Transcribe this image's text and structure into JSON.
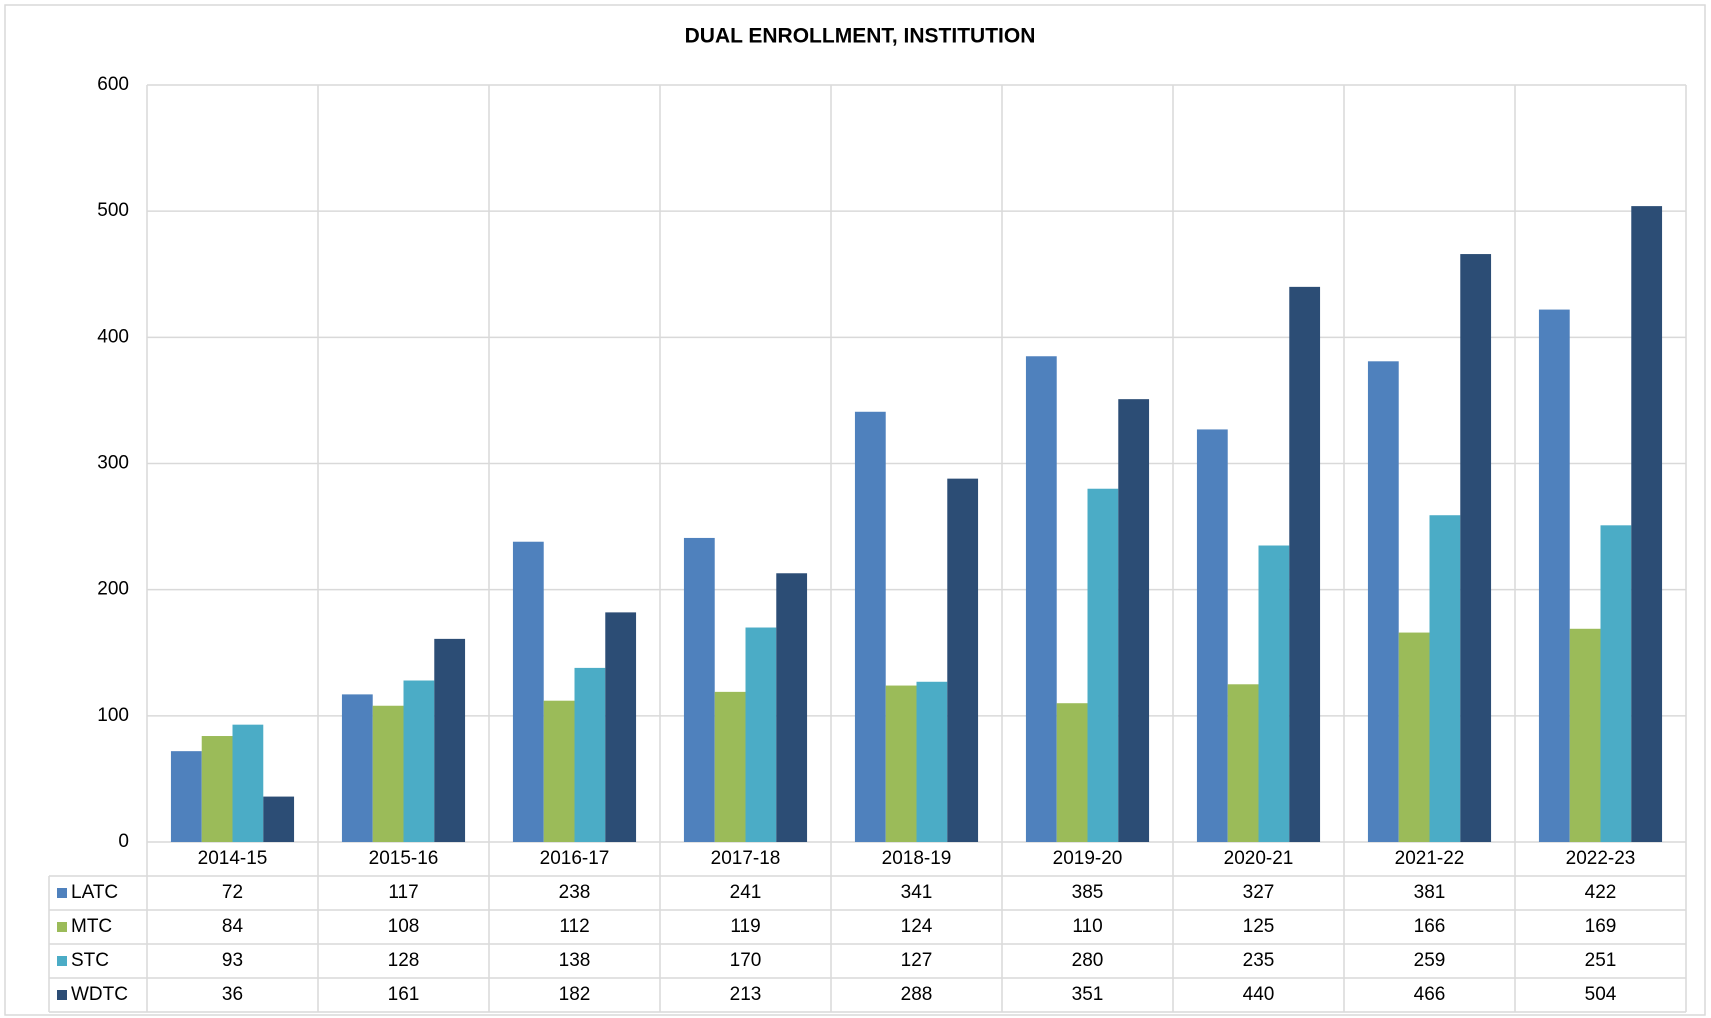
{
  "chart_data": {
    "type": "bar",
    "title": "DUAL ENROLLMENT, INSTITUTION",
    "categories": [
      "2014-15",
      "2015-16",
      "2016-17",
      "2017-18",
      "2018-19",
      "2019-20",
      "2020-21",
      "2021-22",
      "2022-23"
    ],
    "series": [
      {
        "name": "LATC",
        "color": "#4f81bd",
        "values": [
          72,
          117,
          238,
          241,
          341,
          385,
          327,
          381,
          422
        ]
      },
      {
        "name": "MTC",
        "color": "#9bbb59",
        "values": [
          84,
          108,
          112,
          119,
          124,
          110,
          125,
          166,
          169
        ]
      },
      {
        "name": "STC",
        "color": "#4bacc6",
        "values": [
          93,
          128,
          138,
          170,
          127,
          280,
          235,
          259,
          251
        ]
      },
      {
        "name": "WDTC",
        "color": "#2c4d75",
        "values": [
          36,
          161,
          182,
          213,
          288,
          351,
          440,
          466,
          504
        ]
      }
    ],
    "ylim": [
      0,
      600
    ],
    "yticks": [
      0,
      100,
      200,
      300,
      400,
      500,
      600
    ],
    "grid": true
  }
}
